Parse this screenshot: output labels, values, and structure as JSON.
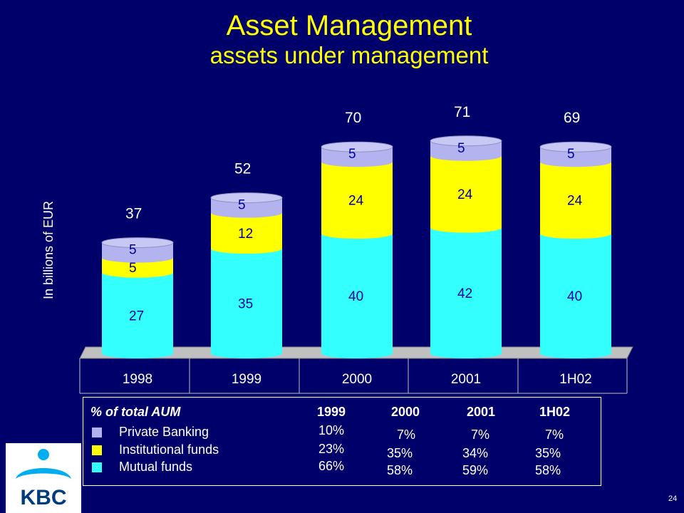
{
  "title": "Asset Management",
  "subtitle": "assets under management",
  "logo_text": "KBC",
  "page_number": "24",
  "colors": {
    "background": "#00006b",
    "title": "#ffff00",
    "mutual_funds": "#33ffff",
    "institutional_funds": "#ffff00",
    "private_banking": "#b3b3f0"
  },
  "chart_data": {
    "type": "bar",
    "stacked": true,
    "ylabel": "In billions of EUR",
    "categories": [
      "1998",
      "1999",
      "2000",
      "2001",
      "1H02"
    ],
    "series": [
      {
        "key": "mutual",
        "values": [
          27,
          35,
          40,
          42,
          40
        ]
      },
      {
        "key": "institutional",
        "values": [
          5,
          12,
          24,
          24,
          24
        ]
      },
      {
        "key": "private",
        "values": [
          5,
          5,
          5,
          5,
          5
        ]
      }
    ],
    "totals": [
      "37",
      "52",
      "70",
      "71",
      "69"
    ],
    "ylim": [
      0,
      75
    ],
    "grid": false,
    "legend": "none"
  },
  "summary_table": {
    "header": "% of total AUM",
    "columns": [
      "1999",
      "2000",
      "2001",
      "1H02"
    ],
    "rows": [
      {
        "label": "Private Banking",
        "color": "#b3b3f0",
        "values": [
          "10%",
          "7%",
          "7%",
          "7%"
        ]
      },
      {
        "label": "Institutional funds",
        "color": "#ffff00",
        "values": [
          "23%",
          "35%",
          "34%",
          "35%"
        ]
      },
      {
        "label": "Mutual funds",
        "color": "#33ffff",
        "values": [
          "66%",
          "58%",
          "59%",
          "58%"
        ]
      }
    ]
  }
}
